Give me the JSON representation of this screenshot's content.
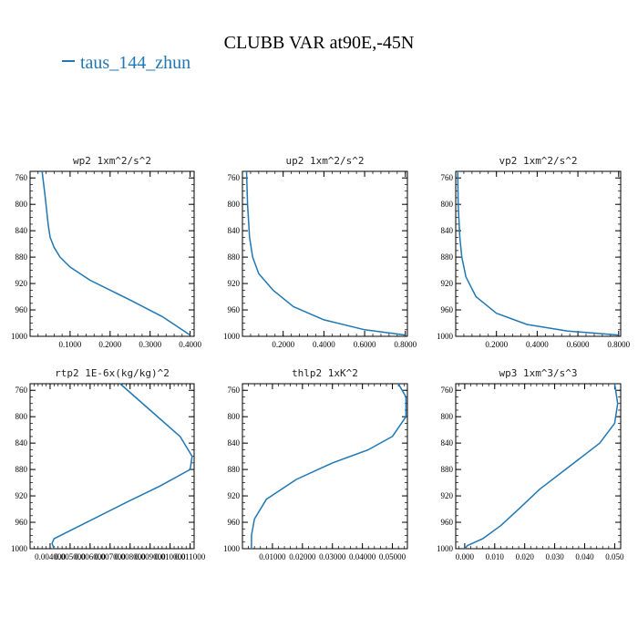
{
  "figure": {
    "title": "CLUBB VAR at90E,-45N",
    "legend_label": "taus_144_zhun",
    "line_color": "#1f77b4"
  },
  "chart_data": [
    {
      "type": "line",
      "title": "wp2  1xm^2/s^2",
      "xlim": [
        0.0,
        0.41
      ],
      "ylim": [
        1000,
        750
      ],
      "y_inverted": true,
      "xticks": [
        0.1,
        0.2,
        0.3,
        0.4
      ],
      "xtick_labels": [
        "0.1000",
        "0.2000",
        "0.3000",
        "0.4000"
      ],
      "yticks": [
        760,
        800,
        840,
        880,
        920,
        960,
        1000
      ],
      "ytick_labels": [
        "760",
        "800",
        "840",
        "880",
        "920",
        "960",
        "1000"
      ],
      "series": [
        {
          "x": [
            0.03,
            0.038,
            0.045,
            0.05,
            0.06,
            0.075,
            0.1,
            0.15,
            0.25,
            0.33,
            0.4
          ],
          "y": [
            750,
            790,
            830,
            850,
            865,
            880,
            895,
            915,
            945,
            970,
            998
          ]
        }
      ]
    },
    {
      "type": "line",
      "title": "up2  1xm^2/s^2",
      "xlim": [
        0.0,
        0.81
      ],
      "ylim": [
        1000,
        750
      ],
      "y_inverted": true,
      "xticks": [
        0.2,
        0.4,
        0.6,
        0.8
      ],
      "xtick_labels": [
        "0.2000",
        "0.4000",
        "0.6000",
        "0.8000"
      ],
      "yticks": [
        760,
        800,
        840,
        880,
        920,
        960,
        1000
      ],
      "ytick_labels": [
        "760",
        "800",
        "840",
        "880",
        "920",
        "960",
        "1000"
      ],
      "series": [
        {
          "x": [
            0.02,
            0.025,
            0.035,
            0.05,
            0.08,
            0.15,
            0.25,
            0.4,
            0.6,
            0.8
          ],
          "y": [
            750,
            800,
            850,
            880,
            905,
            930,
            955,
            975,
            990,
            998
          ]
        }
      ]
    },
    {
      "type": "line",
      "title": "vp2  1xm^2/s^2",
      "xlim": [
        0.0,
        0.81
      ],
      "ylim": [
        1000,
        750
      ],
      "y_inverted": true,
      "xticks": [
        0.2,
        0.4,
        0.6,
        0.8
      ],
      "xtick_labels": [
        "0.2000",
        "0.4000",
        "0.6000",
        "0.8000"
      ],
      "yticks": [
        760,
        800,
        840,
        880,
        920,
        960,
        1000
      ],
      "ytick_labels": [
        "760",
        "800",
        "840",
        "880",
        "920",
        "960",
        "1000"
      ],
      "series": [
        {
          "x": [
            0.01,
            0.012,
            0.02,
            0.03,
            0.05,
            0.1,
            0.2,
            0.35,
            0.55,
            0.8
          ],
          "y": [
            750,
            800,
            850,
            880,
            910,
            940,
            965,
            982,
            992,
            998
          ]
        }
      ]
    },
    {
      "type": "line",
      "title": "rtp2  1E-6x(kg/kg)^2",
      "xlim": [
        0.003,
        0.0112
      ],
      "ylim": [
        1000,
        750
      ],
      "y_inverted": true,
      "xticks": [
        0.004,
        0.005,
        0.006,
        0.007,
        0.008,
        0.009,
        0.01,
        0.011
      ],
      "xtick_labels": [
        "0.004000",
        "0.005000",
        "0.006000",
        "0.007000",
        "0.008000",
        "0.009000",
        "0.010000",
        "0.011000"
      ],
      "yticks": [
        760,
        800,
        840,
        880,
        920,
        960,
        1000
      ],
      "ytick_labels": [
        "760",
        "800",
        "840",
        "880",
        "920",
        "960",
        "1000"
      ],
      "series": [
        {
          "x": [
            0.0075,
            0.009,
            0.0105,
            0.0111,
            0.011,
            0.0095,
            0.0078,
            0.0055,
            0.0042,
            0.0041,
            0.0042
          ],
          "y": [
            750,
            790,
            830,
            860,
            880,
            905,
            930,
            965,
            985,
            992,
            1000
          ]
        }
      ]
    },
    {
      "type": "line",
      "title": "thlp2  1xK^2",
      "xlim": [
        0.0,
        0.055
      ],
      "ylim": [
        1000,
        750
      ],
      "y_inverted": true,
      "xticks": [
        0.01,
        0.02,
        0.03,
        0.04,
        0.05
      ],
      "xtick_labels": [
        "0.01000",
        "0.02000",
        "0.03000",
        "0.04000",
        "0.05000"
      ],
      "yticks": [
        760,
        800,
        840,
        880,
        920,
        960,
        1000
      ],
      "ytick_labels": [
        "760",
        "800",
        "840",
        "880",
        "920",
        "960",
        "1000"
      ],
      "series": [
        {
          "x": [
            0.052,
            0.0545,
            0.0545,
            0.05,
            0.042,
            0.03,
            0.018,
            0.008,
            0.004,
            0.003,
            0.003
          ],
          "y": [
            750,
            770,
            800,
            830,
            850,
            870,
            895,
            925,
            955,
            980,
            1000
          ]
        }
      ]
    },
    {
      "type": "line",
      "title": "wp3  1xm^3/s^3",
      "xlim": [
        -0.003,
        0.052
      ],
      "ylim": [
        1000,
        750
      ],
      "y_inverted": true,
      "xticks": [
        0.0,
        0.01,
        0.02,
        0.03,
        0.04,
        0.05
      ],
      "xtick_labels": [
        "0.000",
        "0.010",
        "0.020",
        "0.030",
        "0.040",
        "0.050"
      ],
      "yticks": [
        760,
        800,
        840,
        880,
        920,
        960,
        1000
      ],
      "ytick_labels": [
        "760",
        "800",
        "840",
        "880",
        "920",
        "960",
        "1000"
      ],
      "series": [
        {
          "x": [
            0.05,
            0.051,
            0.05,
            0.045,
            0.035,
            0.025,
            0.018,
            0.012,
            0.006,
            0.001,
            0.0
          ],
          "y": [
            750,
            780,
            810,
            840,
            875,
            910,
            940,
            965,
            985,
            995,
            1000
          ]
        }
      ]
    }
  ]
}
